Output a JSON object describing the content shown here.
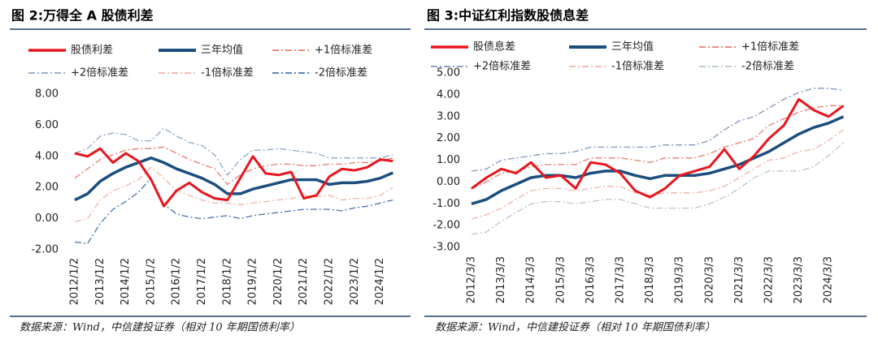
{
  "chart_data": [
    {
      "type": "line",
      "title": "图 2:万得全 A 股债利差",
      "source": "数据来源：Wind，中信建投证券（相对 10 年期国债利率）",
      "categories": [
        "2012/1/2",
        null,
        "2013/1/2",
        null,
        "2014/1/2",
        null,
        "2015/1/2",
        null,
        "2016/1/2",
        null,
        "2017/1/2",
        null,
        "2018/1/2",
        null,
        "2019/1/2",
        null,
        "2020/1/2",
        null,
        "2021/1/2",
        null,
        "2022/1/2",
        null,
        "2023/1/2",
        null,
        "2024/1/2",
        null
      ],
      "ylim": [
        -2,
        8
      ],
      "yticks": [
        {
          "value": -2,
          "label": "-2.00"
        },
        {
          "value": 0,
          "label": "0.00"
        },
        {
          "value": 2,
          "label": "2.00"
        },
        {
          "value": 4,
          "label": "4.00"
        },
        {
          "value": 6,
          "label": "6.00"
        },
        {
          "value": 8,
          "label": "8.00"
        }
      ],
      "series": [
        {
          "name": "股债利差",
          "color": "#e8161e",
          "style": "solid",
          "values": [
            4.2,
            4.0,
            4.5,
            3.6,
            4.2,
            3.7,
            2.5,
            0.8,
            1.8,
            2.3,
            1.7,
            1.3,
            1.2,
            2.6,
            4.0,
            2.9,
            2.8,
            3.0,
            1.3,
            1.5,
            2.7,
            3.2,
            3.1,
            3.3,
            3.8,
            3.7
          ]
        },
        {
          "name": "三年均值",
          "color": "#1c4e7e",
          "style": "solid",
          "values": [
            1.2,
            1.6,
            2.4,
            2.9,
            3.3,
            3.6,
            3.9,
            3.6,
            3.2,
            2.9,
            2.6,
            2.2,
            1.6,
            1.6,
            1.9,
            2.1,
            2.3,
            2.5,
            2.5,
            2.5,
            2.2,
            2.3,
            2.3,
            2.4,
            2.6,
            2.95
          ]
        },
        {
          "name": "+1倍标准差",
          "color": "#e87d6c",
          "style": "dashdot",
          "values": [
            2.6,
            3.2,
            3.8,
            4.1,
            4.4,
            4.5,
            4.5,
            4.6,
            4.2,
            3.8,
            3.5,
            3.2,
            2.2,
            2.8,
            3.2,
            3.4,
            3.5,
            3.5,
            3.4,
            3.4,
            3.5,
            3.5,
            3.6,
            3.6,
            3.7,
            3.9
          ]
        },
        {
          "name": "+2倍标准差",
          "color": "#8fa6c8",
          "style": "dashdot",
          "values": [
            4.2,
            4.5,
            5.3,
            5.5,
            5.4,
            5.0,
            5.0,
            5.8,
            5.3,
            4.9,
            4.7,
            4.1,
            2.8,
            3.8,
            4.4,
            4.4,
            4.5,
            4.4,
            4.3,
            4.2,
            3.9,
            3.9,
            3.9,
            3.9,
            3.9,
            4.1
          ]
        },
        {
          "name": "-1倍标准差",
          "color": "#f2b3aa",
          "style": "dashdot",
          "values": [
            -0.2,
            0.0,
            1.2,
            1.8,
            2.1,
            2.5,
            3.3,
            2.6,
            1.8,
            1.5,
            1.2,
            1.0,
            1.0,
            0.9,
            1.0,
            1.1,
            1.2,
            1.3,
            1.5,
            1.4,
            1.5,
            1.2,
            1.3,
            1.3,
            1.5,
            2.0
          ]
        },
        {
          "name": "-2倍标准差",
          "color": "#4a72ad",
          "style": "dashdot",
          "values": [
            -1.5,
            -1.6,
            -0.3,
            0.6,
            1.1,
            1.7,
            2.6,
            0.9,
            0.3,
            0.1,
            0.0,
            0.1,
            0.2,
            0.0,
            0.2,
            0.3,
            0.4,
            0.5,
            0.6,
            0.6,
            0.6,
            0.5,
            0.7,
            0.8,
            1.0,
            1.2
          ]
        }
      ]
    },
    {
      "type": "line",
      "title": "图 3:中证红利指数股债息差",
      "source": "数据来源：Wind，中信建投证券（相对 10 年期国债利率）",
      "categories": [
        "2012/3/3",
        null,
        "2013/3/3",
        null,
        "2014/3/3",
        null,
        "2015/3/3",
        null,
        "2016/3/3",
        null,
        "2017/3/3",
        null,
        "2018/3/3",
        null,
        "2019/3/3",
        null,
        "2020/3/3",
        null,
        "2021/3/3",
        null,
        "2022/3/3",
        null,
        "2023/3/3",
        null,
        "2024/3/3",
        null
      ],
      "ylim": [
        -3,
        5
      ],
      "yticks": [
        {
          "value": -3,
          "label": "-3.00"
        },
        {
          "value": -2,
          "label": "-2.00"
        },
        {
          "value": -1,
          "label": "-1.00"
        },
        {
          "value": 0,
          "label": "0.00"
        },
        {
          "value": 1,
          "label": "1.00"
        },
        {
          "value": 2,
          "label": "2.00"
        },
        {
          "value": 3,
          "label": "3.00"
        },
        {
          "value": 4,
          "label": "4.00"
        },
        {
          "value": 5,
          "label": "5.00"
        }
      ],
      "series": [
        {
          "name": "股债息差",
          "color": "#e8161e",
          "style": "solid",
          "values": [
            -0.3,
            0.2,
            0.6,
            0.4,
            0.9,
            0.2,
            0.3,
            -0.3,
            0.9,
            0.8,
            0.4,
            -0.4,
            -0.7,
            -0.3,
            0.3,
            0.5,
            0.7,
            1.5,
            0.6,
            1.2,
            2.0,
            2.6,
            3.8,
            3.3,
            3.0,
            3.5
          ]
        },
        {
          "name": "三年均值",
          "color": "#1c4e7e",
          "style": "solid",
          "values": [
            -1.0,
            -0.8,
            -0.4,
            -0.1,
            0.2,
            0.3,
            0.3,
            0.2,
            0.4,
            0.5,
            0.5,
            0.3,
            0.15,
            0.3,
            0.3,
            0.3,
            0.4,
            0.6,
            0.8,
            1.1,
            1.4,
            1.8,
            2.2,
            2.5,
            2.7,
            3.0
          ]
        },
        {
          "name": "+1倍标准差",
          "color": "#e87d6c",
          "style": "dashdot",
          "values": [
            -0.3,
            0.0,
            0.4,
            0.5,
            0.7,
            0.8,
            0.8,
            0.8,
            1.1,
            1.1,
            1.1,
            1.0,
            0.9,
            1.1,
            1.1,
            1.1,
            1.3,
            1.6,
            1.8,
            2.0,
            2.6,
            2.9,
            3.2,
            3.4,
            3.5,
            3.5
          ]
        },
        {
          "name": "+2倍标准差",
          "color": "#7f97b8",
          "style": "dashdot",
          "values": [
            0.5,
            0.6,
            1.0,
            1.1,
            1.2,
            1.3,
            1.3,
            1.4,
            1.6,
            1.6,
            1.6,
            1.6,
            1.6,
            1.7,
            1.7,
            1.7,
            1.9,
            2.4,
            2.8,
            3.0,
            3.4,
            3.8,
            4.1,
            4.3,
            4.3,
            4.2
          ]
        },
        {
          "name": "-1倍标准差",
          "color": "#f2b3aa",
          "style": "dashdot",
          "values": [
            -1.7,
            -1.5,
            -1.2,
            -0.8,
            -0.4,
            -0.3,
            -0.3,
            -0.4,
            -0.3,
            -0.2,
            -0.2,
            -0.5,
            -0.6,
            -0.5,
            -0.5,
            -0.5,
            -0.4,
            -0.2,
            0.2,
            0.6,
            1.0,
            1.1,
            1.4,
            1.5,
            1.9,
            2.4
          ]
        },
        {
          "name": "-2倍标准差",
          "color": "#b7c6cf",
          "style": "dashdot",
          "values": [
            -2.4,
            -2.3,
            -1.8,
            -1.4,
            -1.0,
            -0.9,
            -0.9,
            -1.0,
            -0.9,
            -0.8,
            -0.8,
            -1.0,
            -1.2,
            -1.2,
            -1.2,
            -1.2,
            -1.0,
            -0.7,
            -0.3,
            0.2,
            0.5,
            0.5,
            0.5,
            0.7,
            1.2,
            1.8
          ]
        }
      ]
    }
  ]
}
